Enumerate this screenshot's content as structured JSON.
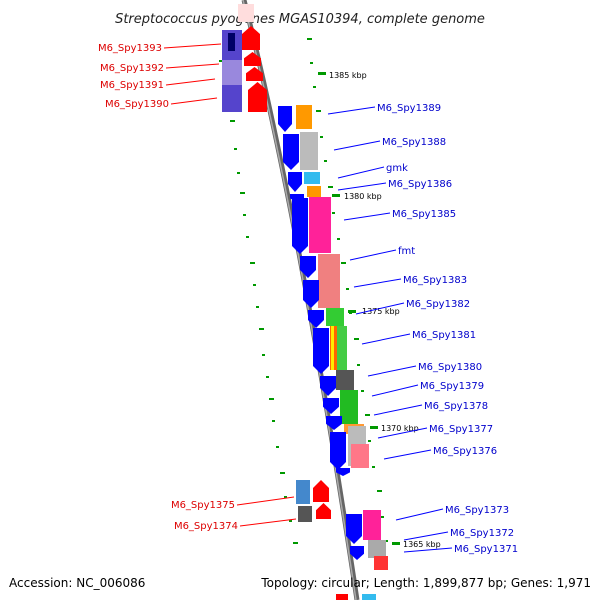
{
  "title": "Streptococcus pyogenes MGAS10394, complete genome",
  "footer": {
    "accession": "Accession: NC_006086",
    "summary": "Topology: circular; Length: 1,899,877 bp; Genes: 1,971"
  },
  "colors": {
    "forward": "#ff0000",
    "reverse": "#0000ff",
    "backbone": "#777777",
    "gc_tick": "#009900"
  },
  "kbp_marks": [
    "1385 kbp",
    "1380 kbp",
    "1375 kbp",
    "1370 kbp",
    "1365 kbp"
  ],
  "genes_forward": [
    "M6_Spy1393",
    "M6_Spy1392",
    "M6_Spy1391",
    "M6_Spy1390",
    "M6_Spy1375",
    "M6_Spy1374"
  ],
  "genes_reverse": [
    "M6_Spy1389",
    "M6_Spy1388",
    "gmk",
    "M6_Spy1386",
    "M6_Spy1385",
    "fmt",
    "M6_Spy1383",
    "M6_Spy1382",
    "M6_Spy1381",
    "M6_Spy1380",
    "M6_Spy1379",
    "M6_Spy1378",
    "M6_Spy1377",
    "M6_Spy1376",
    "M6_Spy1373",
    "M6_Spy1372",
    "M6_Spy1371"
  ]
}
